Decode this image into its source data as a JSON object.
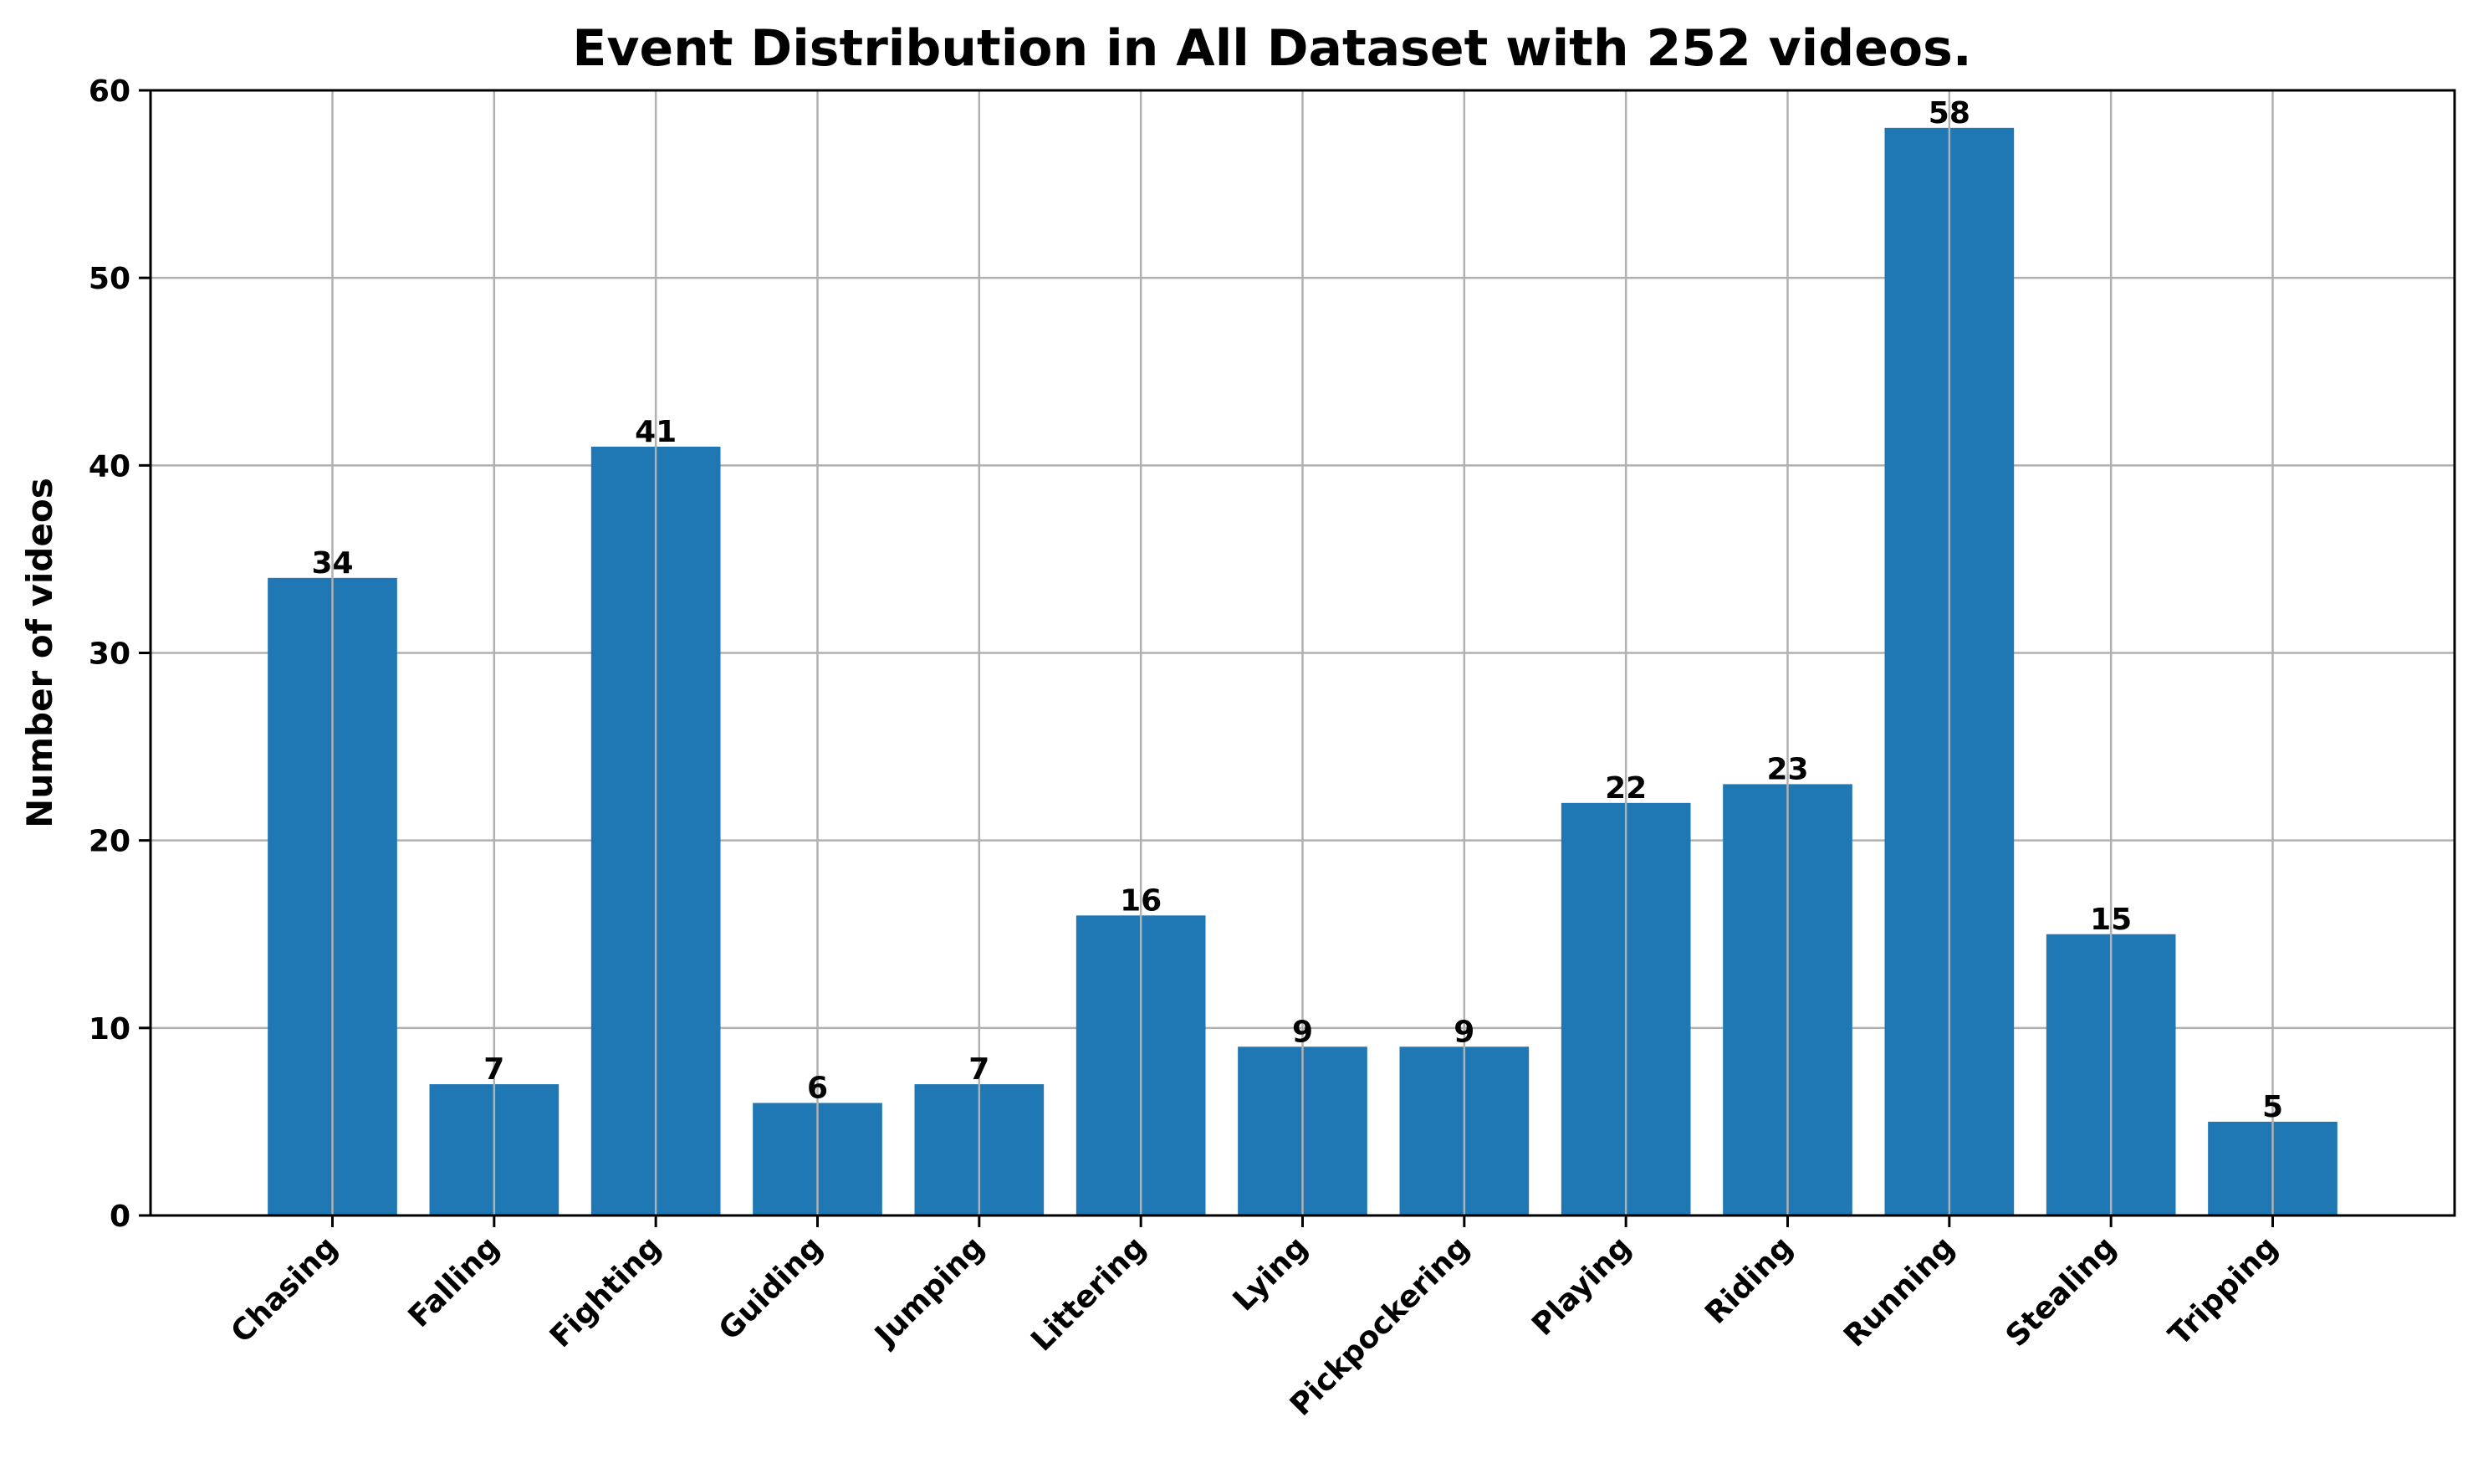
{
  "chart_data": {
    "type": "bar",
    "title": "Event Distribution in All Dataset with 252 videos.",
    "xlabel": "",
    "ylabel": "Number of videos",
    "categories": [
      "Chasing",
      "Falling",
      "Fighting",
      "Guiding",
      "Jumping",
      "Littering",
      "Lying",
      "Pickpockering",
      "Playing",
      "Riding",
      "Running",
      "Stealing",
      "Tripping"
    ],
    "values": [
      34,
      7,
      41,
      6,
      7,
      16,
      9,
      9,
      22,
      23,
      58,
      15,
      5
    ],
    "ylim": [
      0,
      60
    ],
    "yticks": [
      0,
      10,
      20,
      30,
      40,
      50,
      60
    ],
    "grid": true,
    "bar_color": "#1f77b4",
    "data_labels": true
  }
}
